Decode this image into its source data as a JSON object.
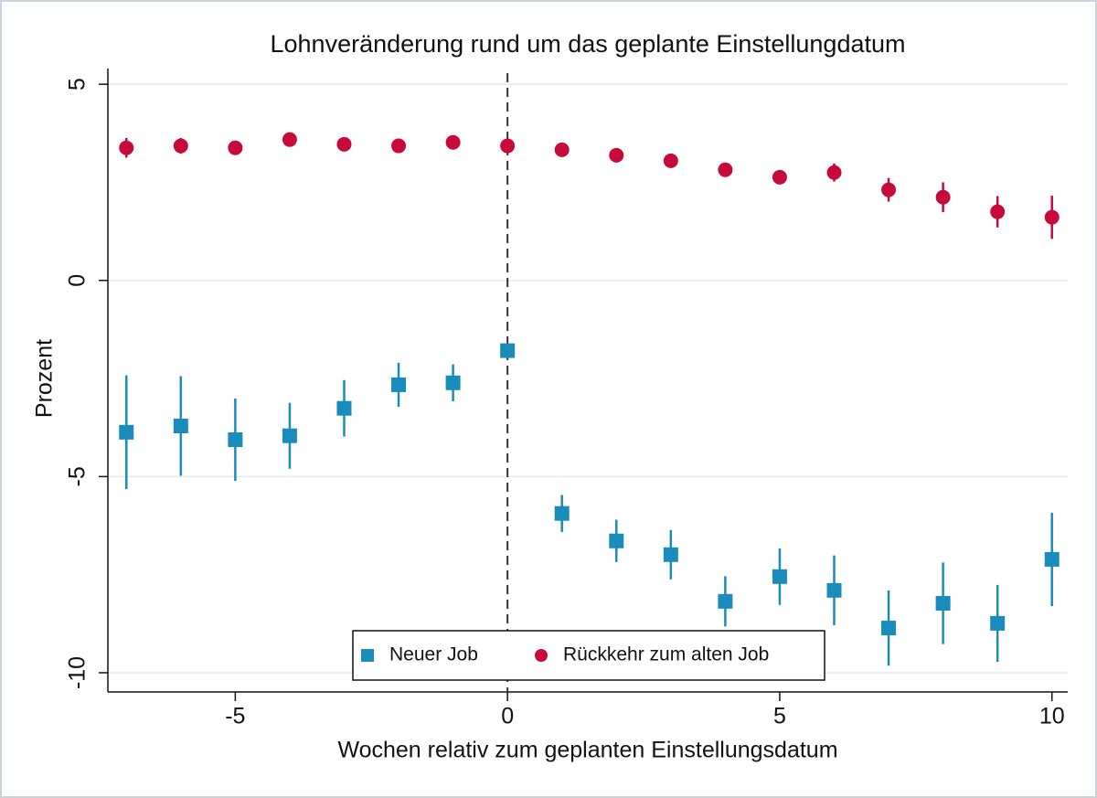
{
  "chart_data": {
    "type": "scatter",
    "title": "Lohnveränderung rund um das geplante Einstellungdatum",
    "x_label": "Wochen relativ zum geplanten Einstellungsdatum",
    "y_label": "Prozent",
    "x": [
      -7,
      -6,
      -5,
      -4,
      -3,
      -2,
      -1,
      0,
      1,
      2,
      3,
      4,
      5,
      6,
      7,
      8,
      9,
      10
    ],
    "series": [
      {
        "name": "Neuer Job",
        "color": "#1a8cbc",
        "marker": "square",
        "values": [
          -3.87,
          -3.71,
          -4.06,
          -3.96,
          -3.26,
          -2.66,
          -2.61,
          -1.79,
          -5.94,
          -6.64,
          -6.99,
          -8.18,
          -7.55,
          -7.9,
          -8.86,
          -8.23,
          -8.74,
          -7.11
        ],
        "errors": [
          1.45,
          1.27,
          1.05,
          0.84,
          0.72,
          0.56,
          0.47,
          0.15,
          0.47,
          0.54,
          0.63,
          0.64,
          0.72,
          0.89,
          0.96,
          1.04,
          0.98,
          1.19
        ]
      },
      {
        "name": "Rückkehr zum alten Job",
        "color": "#c60a3c",
        "marker": "circle",
        "values": [
          3.38,
          3.43,
          3.38,
          3.59,
          3.47,
          3.43,
          3.52,
          3.43,
          3.33,
          3.19,
          3.05,
          2.82,
          2.63,
          2.75,
          2.31,
          2.12,
          1.75,
          1.61
        ],
        "errors": [
          0.25,
          0.2,
          0.15,
          0.15,
          0.15,
          0.15,
          0.15,
          0.15,
          0.15,
          0.15,
          0.15,
          0.15,
          0.15,
          0.23,
          0.3,
          0.38,
          0.4,
          0.55
        ]
      }
    ],
    "xlim": [
      -7.34,
      10.29
    ],
    "ylim": [
      -10.49,
      5.4
    ],
    "xticks": [
      -5,
      0,
      5,
      10
    ],
    "yticks": [
      -10,
      -5,
      0,
      5
    ],
    "grid": true,
    "reference_line_x": 0,
    "legend_position": "bottom"
  }
}
